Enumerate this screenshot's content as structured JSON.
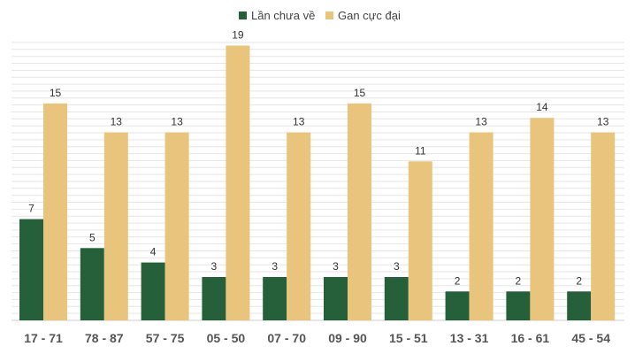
{
  "chart_data": {
    "type": "bar",
    "categories": [
      "17 - 71",
      "78 - 87",
      "57 - 75",
      "05 - 50",
      "07 - 70",
      "09 - 90",
      "15 - 51",
      "13 - 31",
      "16 - 61",
      "45 - 54"
    ],
    "series": [
      {
        "name": "Lần chưa về",
        "color": "#25603a",
        "values": [
          7,
          5,
          4,
          3,
          3,
          3,
          3,
          2,
          2,
          2
        ]
      },
      {
        "name": "Gan cực đại",
        "color": "#e8c47c",
        "values": [
          15,
          13,
          13,
          19,
          13,
          15,
          11,
          13,
          14,
          13
        ]
      }
    ],
    "ylim": [
      0,
      19.4
    ],
    "grid": true,
    "legend_position": "top-center"
  }
}
